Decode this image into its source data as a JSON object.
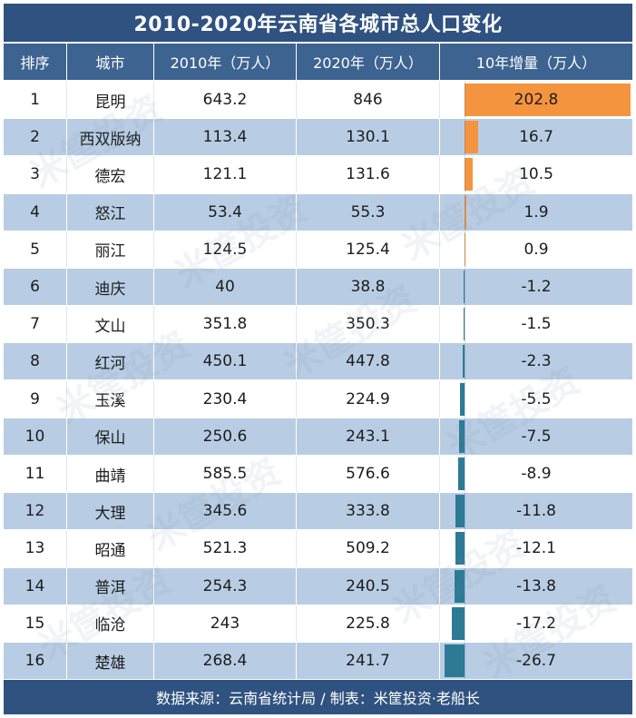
{
  "title": "2010-2020年云南省各城市总人口变化",
  "headers": {
    "rank": "排序",
    "city": "城市",
    "pop2010": "2010年（万人）",
    "pop2020": "2020年（万人）",
    "change": "10年增量（万人）"
  },
  "footer": "数据来源：云南省统计局 / 制表：米筐投资·老船长",
  "watermark": "米筐投资",
  "colors": {
    "title_bg": "#2f5280",
    "header_bg": "#3d6391",
    "stripe": "#b8cde4",
    "positive_bar": "#f5943f",
    "negative_bar": "#2d7a95"
  },
  "chart_data": {
    "type": "table",
    "title": "2010-2020年云南省各城市总人口变化",
    "columns": [
      "排序",
      "城市",
      "2010年（万人）",
      "2020年（万人）",
      "10年增量（万人）"
    ],
    "rows": [
      {
        "rank": "1",
        "city": "昆明",
        "pop2010": "643.2",
        "pop2020": "846",
        "change": "202.8",
        "change_value": 202.8
      },
      {
        "rank": "2",
        "city": "西双版纳",
        "pop2010": "113.4",
        "pop2020": "130.1",
        "change": "16.7",
        "change_value": 16.7
      },
      {
        "rank": "3",
        "city": "德宏",
        "pop2010": "121.1",
        "pop2020": "131.6",
        "change": "10.5",
        "change_value": 10.5
      },
      {
        "rank": "4",
        "city": "怒江",
        "pop2010": "53.4",
        "pop2020": "55.3",
        "change": "1.9",
        "change_value": 1.9
      },
      {
        "rank": "5",
        "city": "丽江",
        "pop2010": "124.5",
        "pop2020": "125.4",
        "change": "0.9",
        "change_value": 0.9
      },
      {
        "rank": "6",
        "city": "迪庆",
        "pop2010": "40",
        "pop2020": "38.8",
        "change": "-1.2",
        "change_value": -1.2
      },
      {
        "rank": "7",
        "city": "文山",
        "pop2010": "351.8",
        "pop2020": "350.3",
        "change": "-1.5",
        "change_value": -1.5
      },
      {
        "rank": "8",
        "city": "红河",
        "pop2010": "450.1",
        "pop2020": "447.8",
        "change": "-2.3",
        "change_value": -2.3
      },
      {
        "rank": "9",
        "city": "玉溪",
        "pop2010": "230.4",
        "pop2020": "224.9",
        "change": "-5.5",
        "change_value": -5.5
      },
      {
        "rank": "10",
        "city": "保山",
        "pop2010": "250.6",
        "pop2020": "243.1",
        "change": "-7.5",
        "change_value": -7.5
      },
      {
        "rank": "11",
        "city": "曲靖",
        "pop2010": "585.5",
        "pop2020": "576.6",
        "change": "-8.9",
        "change_value": -8.9
      },
      {
        "rank": "12",
        "city": "大理",
        "pop2010": "345.6",
        "pop2020": "333.8",
        "change": "-11.8",
        "change_value": -11.8
      },
      {
        "rank": "13",
        "city": "昭通",
        "pop2010": "521.3",
        "pop2020": "509.2",
        "change": "-12.1",
        "change_value": -12.1
      },
      {
        "rank": "14",
        "city": "普洱",
        "pop2010": "254.3",
        "pop2020": "240.5",
        "change": "-13.8",
        "change_value": -13.8
      },
      {
        "rank": "15",
        "city": "临沧",
        "pop2010": "243",
        "pop2020": "225.8",
        "change": "-17.2",
        "change_value": -17.2
      },
      {
        "rank": "16",
        "city": "楚雄",
        "pop2010": "268.4",
        "pop2020": "241.7",
        "change": "-26.7",
        "change_value": -26.7
      }
    ]
  }
}
